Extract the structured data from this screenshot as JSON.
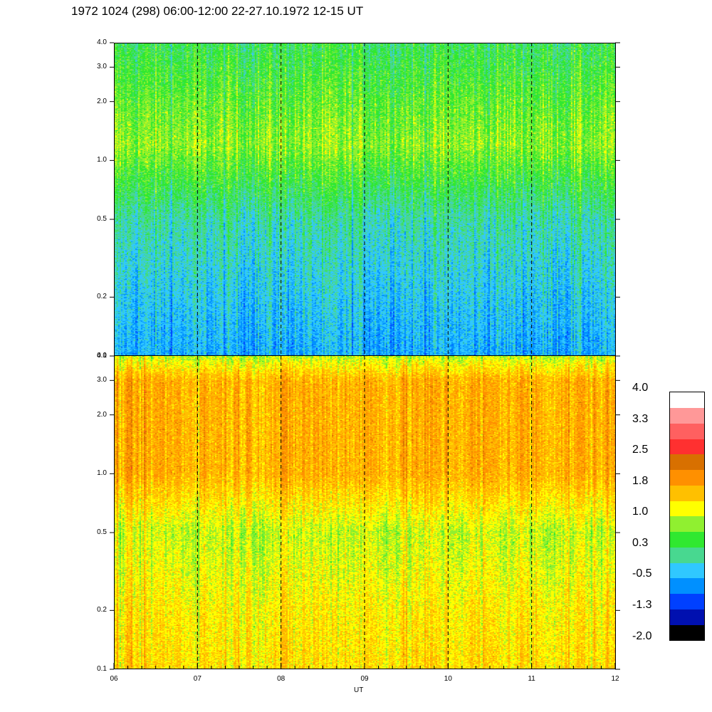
{
  "title": "1972 1024 (298) 06:00-12:00 22-27.10.1972  12-15 UT",
  "chart_data": [
    {
      "type": "heatmap",
      "panel": "top",
      "title": "",
      "xlabel": "UT",
      "ylabel": "",
      "x_range": [
        "06",
        "12"
      ],
      "y_scale": "log",
      "ylim": [
        0.1,
        4.0
      ],
      "y_ticks": [
        "4.0",
        "3.0",
        "2.0",
        "1.0",
        "0.5",
        "0.2",
        "0.1"
      ],
      "y_tick_values": [
        4.0,
        3.0,
        2.0,
        1.0,
        0.5,
        0.2,
        0.1
      ],
      "dashed_lines_at_hours": [
        7,
        8,
        9,
        10,
        11
      ],
      "dominant_level_by_y": [
        {
          "y": 4.0,
          "level": 0.3
        },
        {
          "y": 2.0,
          "level": 0.6
        },
        {
          "y": 1.2,
          "level": 0.8
        },
        {
          "y": 0.5,
          "level": 0.0
        },
        {
          "y": 0.2,
          "level": -0.3
        },
        {
          "y": 0.1,
          "level": -0.5
        }
      ]
    },
    {
      "type": "heatmap",
      "panel": "bottom",
      "title": "",
      "xlabel": "UT",
      "ylabel": "",
      "x_range": [
        "06",
        "12"
      ],
      "x_ticks": [
        "06",
        "07",
        "08",
        "09",
        "10",
        "11",
        "12"
      ],
      "x_tick_values": [
        6,
        7,
        8,
        9,
        10,
        11,
        12
      ],
      "y_scale": "log",
      "ylim": [
        0.1,
        4.0
      ],
      "y_ticks": [
        "4.0",
        "3.0",
        "2.0",
        "1.0",
        "0.5",
        "0.2",
        "0.1"
      ],
      "y_tick_values": [
        4.0,
        3.0,
        2.0,
        1.0,
        0.5,
        0.2,
        0.1
      ],
      "dashed_lines_at_hours": [
        7,
        8,
        9,
        10,
        11
      ],
      "dominant_level_by_y": [
        {
          "y": 4.0,
          "level": 1.0
        },
        {
          "y": 3.0,
          "level": 1.7
        },
        {
          "y": 1.0,
          "level": 1.7
        },
        {
          "y": 0.5,
          "level": 1.0
        },
        {
          "y": 0.2,
          "level": 1.3
        },
        {
          "y": 0.1,
          "level": 1.4
        }
      ]
    }
  ],
  "colorbar": {
    "labels": [
      "4.0",
      "3.3",
      "2.5",
      "1.8",
      "1.0",
      "0.3",
      "-0.5",
      "-1.3",
      "-2.0"
    ],
    "min": -2.0,
    "max": 4.0,
    "colors_bottom_to_top": [
      "#000000",
      "#0010b0",
      "#0040ff",
      "#0090ff",
      "#30c8ff",
      "#48d890",
      "#30e830",
      "#90f030",
      "#ffff00",
      "#ffc000",
      "#ff9000",
      "#d87000",
      "#ff3030",
      "#ff6060",
      "#ff9898",
      "#ffffff"
    ]
  }
}
